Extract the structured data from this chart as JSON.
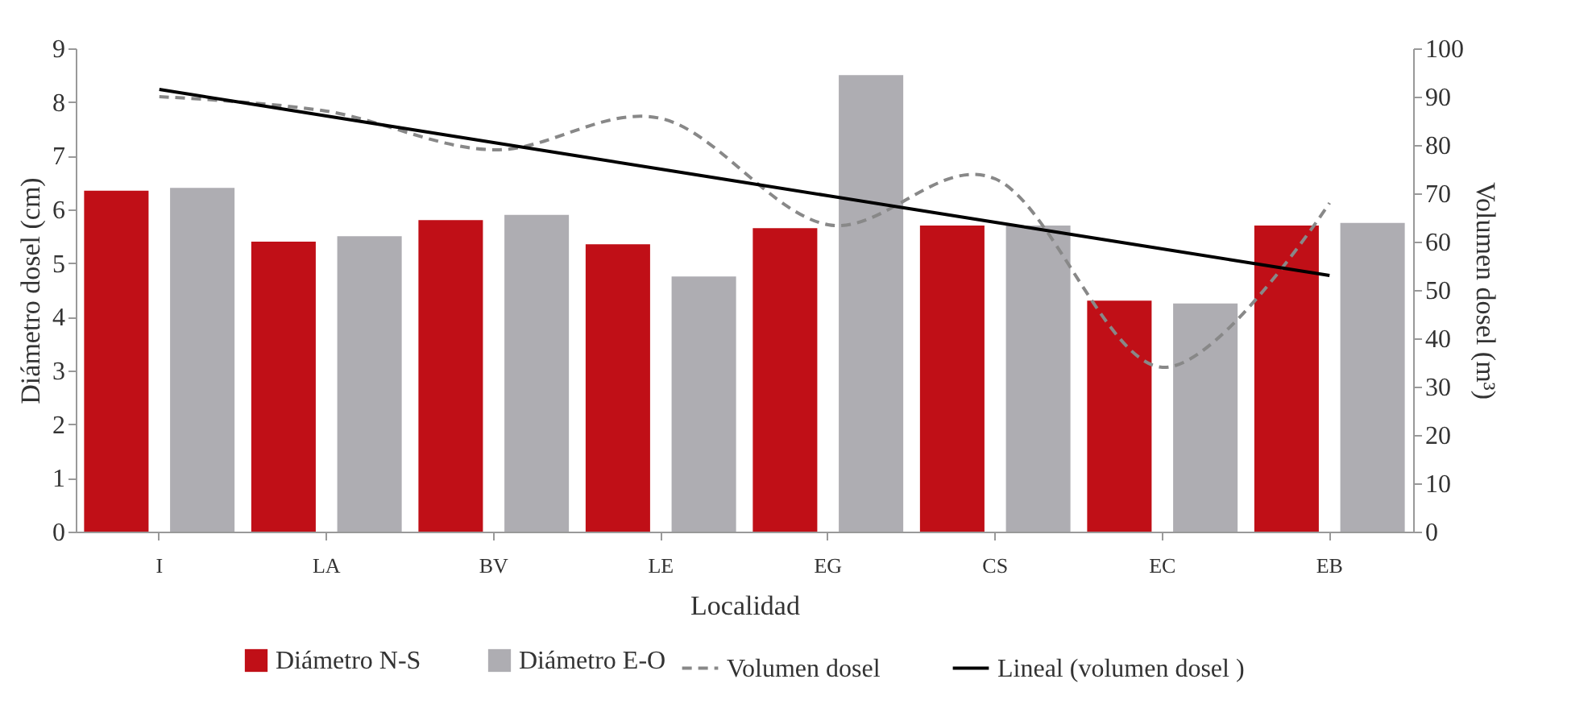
{
  "chart_data": {
    "type": "bar",
    "xlabel": "Localidad",
    "ylabel": "Diámetro dosel (cm)",
    "y2label": "Volumen dosel (m³)",
    "categories": [
      "I",
      "LA",
      "BV",
      "LE",
      "EG",
      "CS",
      "EC",
      "EB"
    ],
    "series": [
      {
        "name": "Diámetro N-S",
        "color": "#c00f17",
        "values": [
          6.35,
          5.4,
          5.8,
          5.35,
          5.65,
          5.7,
          4.3,
          5.7
        ]
      },
      {
        "name": "Diámetro E-O",
        "color": "#aeadb2",
        "values": [
          6.4,
          5.5,
          5.9,
          4.75,
          8.5,
          5.7,
          4.25,
          5.75
        ]
      },
      {
        "name": "Volumen dosel",
        "type": "line",
        "axis": "y2",
        "line_style": "dashed",
        "color": "#888888",
        "values": [
          90,
          87,
          79,
          85.5,
          63.5,
          73,
          34,
          68
        ]
      },
      {
        "name": "Lineal (volumen dosel )",
        "type": "line",
        "axis": "y2",
        "line_style": "solid",
        "color": "#000000",
        "values": [
          91.5,
          86,
          80.5,
          75,
          69.5,
          64,
          58.5,
          53
        ]
      }
    ],
    "ylim": [
      0,
      9
    ],
    "yticks": [
      0,
      1,
      2,
      3,
      4,
      5,
      6,
      7,
      8,
      9
    ],
    "y2lim": [
      0,
      100
    ],
    "y2ticks": [
      0,
      10,
      20,
      30,
      40,
      50,
      60,
      70,
      80,
      90,
      100
    ],
    "grid": false,
    "legend": "bottom",
    "marker": "none"
  }
}
